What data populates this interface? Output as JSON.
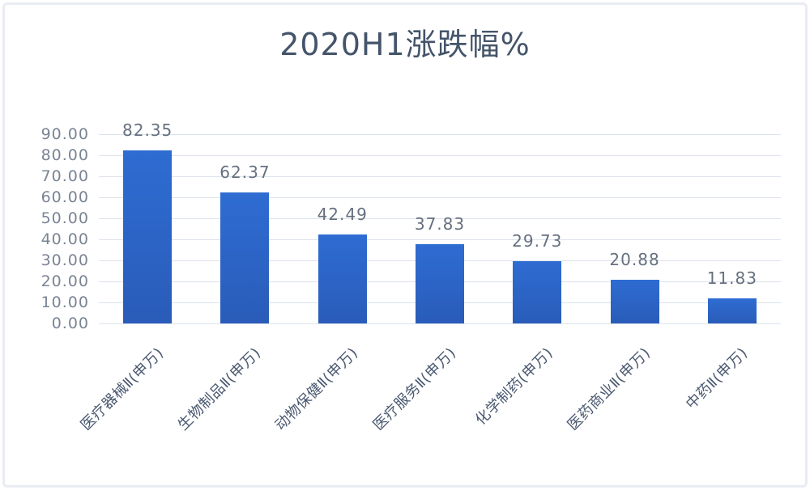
{
  "chart_data": {
    "type": "bar",
    "title": "2020H1涨跌幅%",
    "categories": [
      "医疗器械Ⅱ(申万)",
      "生物制品Ⅱ(申万)",
      "动物保健Ⅱ(申万)",
      "医疗服务Ⅱ(申万)",
      "化学制药(申万)",
      "医药商业Ⅱ(申万)",
      "中药Ⅱ(申万)"
    ],
    "values": [
      82.35,
      62.37,
      42.49,
      37.83,
      29.73,
      20.88,
      11.83
    ],
    "value_labels": [
      "82.35",
      "62.37",
      "42.49",
      "37.83",
      "29.73",
      "20.88",
      "11.83"
    ],
    "y_ticks": [
      "90.00",
      "80.00",
      "70.00",
      "60.00",
      "50.00",
      "40.00",
      "30.00",
      "20.00",
      "10.00",
      "0.00"
    ],
    "ylim": [
      0,
      90
    ],
    "xlabel": "",
    "ylabel": "",
    "grid": true,
    "legend": "none",
    "colors": {
      "bar_top": "#2E6CD2",
      "bar_bottom": "#2A5CB9",
      "gridline": "#DCE2EC",
      "title": "#44546A",
      "y_tick": "#7A8494",
      "value_label": "#66707F",
      "x_label": "#4A5870",
      "frame_border": "#E9EDF3",
      "background": "#FFFFFF"
    }
  }
}
